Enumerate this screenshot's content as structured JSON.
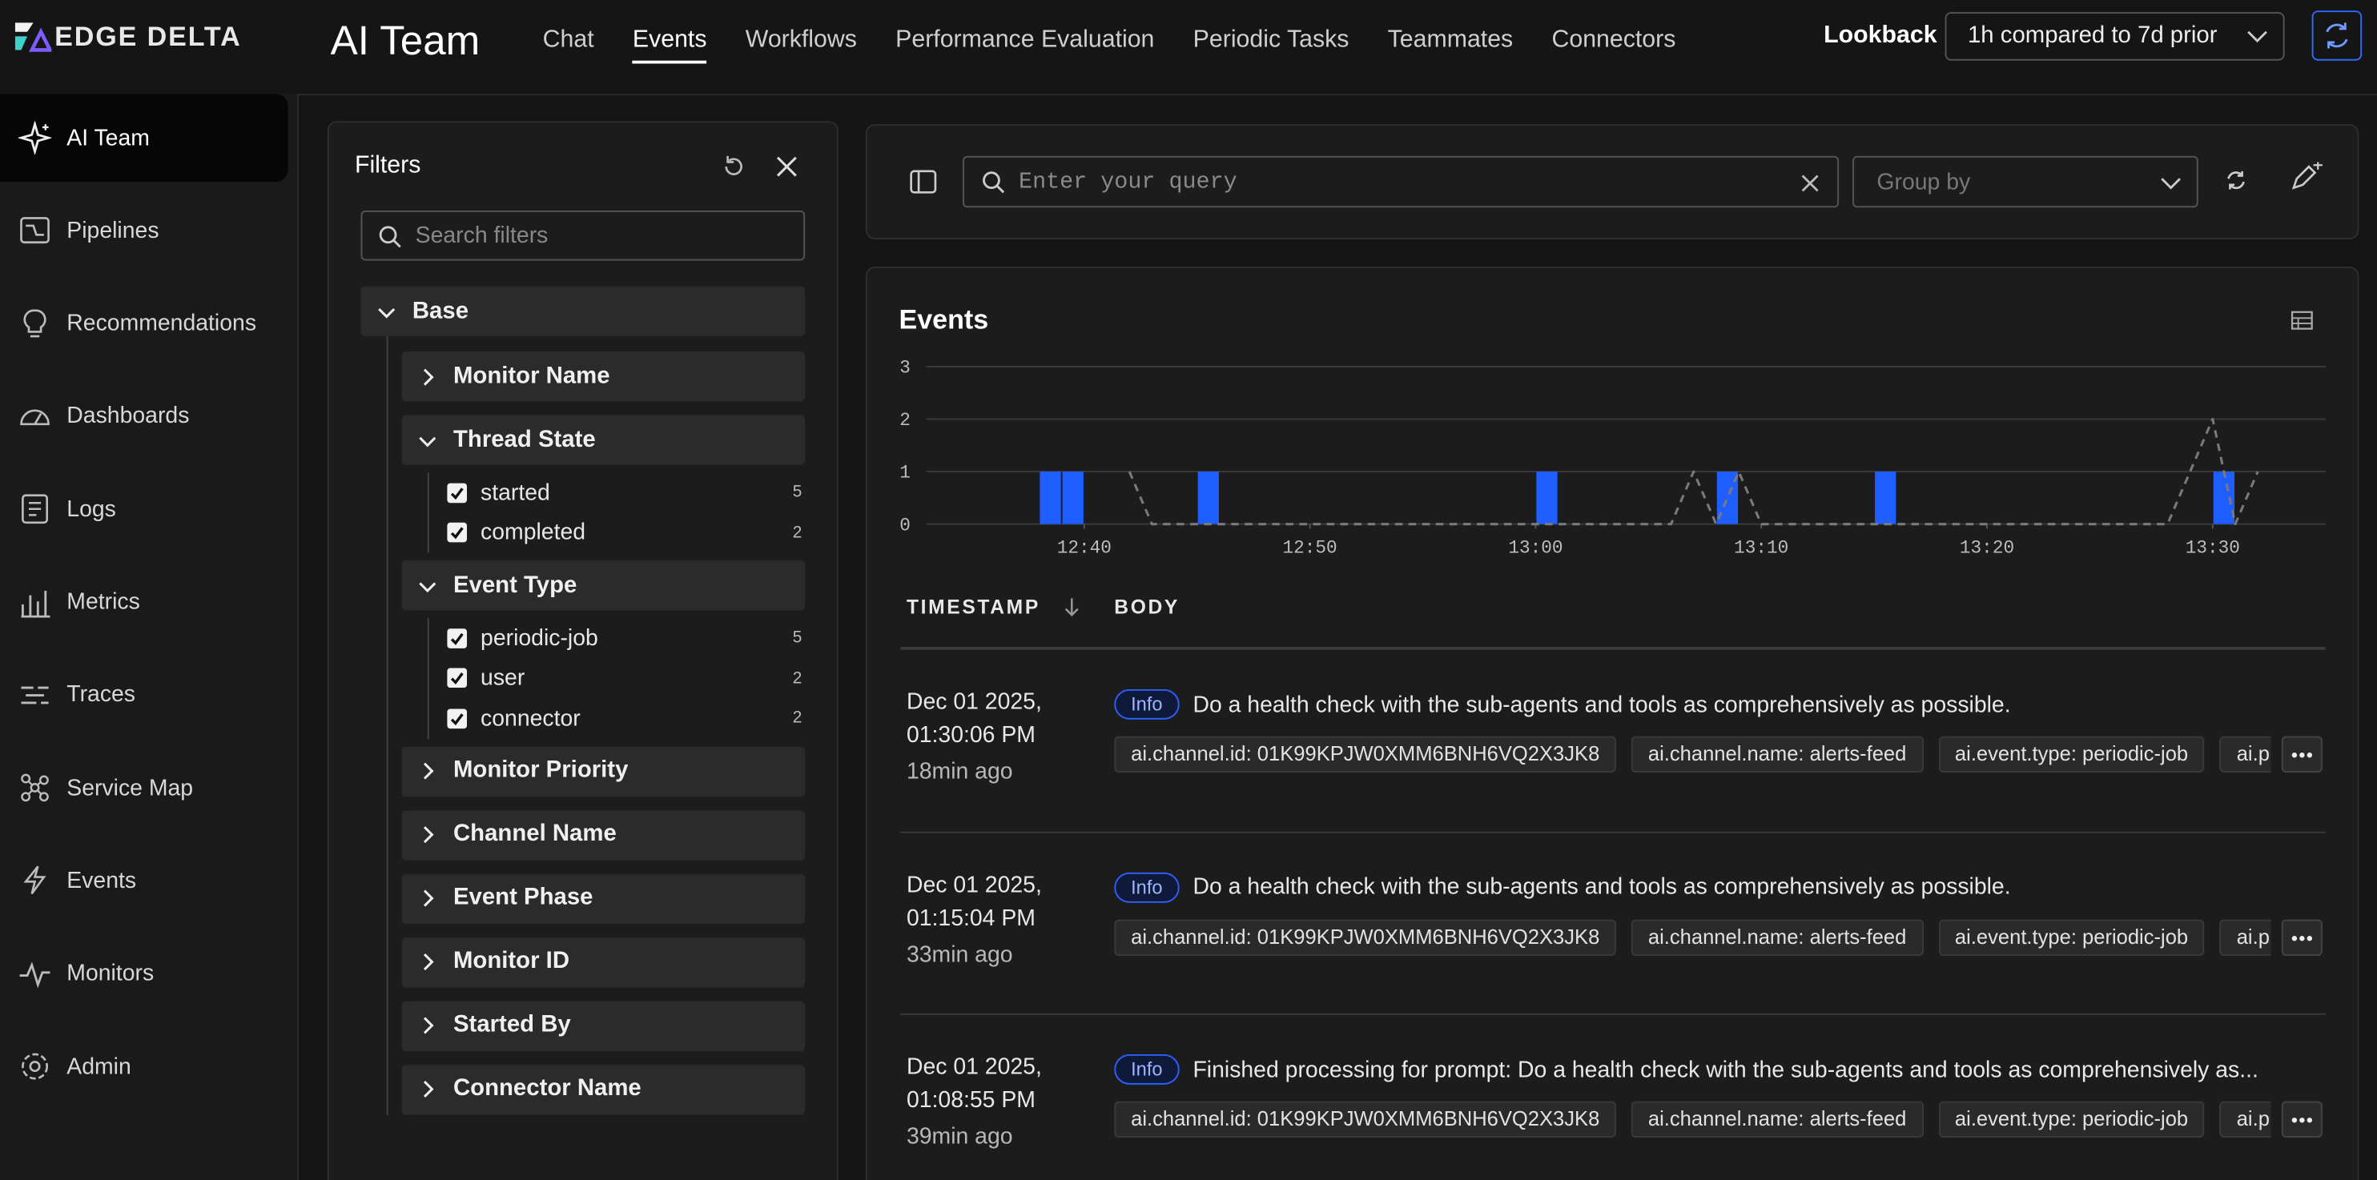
{
  "brand": "EDGE DELTA",
  "header": {
    "title": "AI Team",
    "tabs": [
      {
        "label": "Chat",
        "active": false
      },
      {
        "label": "Events",
        "active": true
      },
      {
        "label": "Workflows",
        "active": false
      },
      {
        "label": "Performance Evaluation",
        "active": false
      },
      {
        "label": "Periodic Tasks",
        "active": false
      },
      {
        "label": "Teammates",
        "active": false
      },
      {
        "label": "Connectors",
        "active": false
      }
    ],
    "lookback_label": "Lookback",
    "lookback_value": "1h compared to 7d prior"
  },
  "sidebar": {
    "items": [
      {
        "label": "AI Team",
        "active": true
      },
      {
        "label": "Pipelines",
        "active": false
      },
      {
        "label": "Recommendations",
        "active": false
      },
      {
        "label": "Dashboards",
        "active": false
      },
      {
        "label": "Logs",
        "active": false
      },
      {
        "label": "Metrics",
        "active": false
      },
      {
        "label": "Traces",
        "active": false
      },
      {
        "label": "Service Map",
        "active": false
      },
      {
        "label": "Events",
        "active": false
      },
      {
        "label": "Monitors",
        "active": false
      },
      {
        "label": "Admin",
        "active": false
      }
    ]
  },
  "filters": {
    "title": "Filters",
    "search_placeholder": "Search filters",
    "groups": [
      {
        "label": "Base",
        "expanded": true,
        "children": [
          {
            "label": "Monitor Name",
            "expanded": false
          },
          {
            "label": "Thread State",
            "expanded": true,
            "options": [
              {
                "label": "started",
                "count": 5,
                "checked": true
              },
              {
                "label": "completed",
                "count": 2,
                "checked": true
              }
            ]
          },
          {
            "label": "Event Type",
            "expanded": true,
            "options": [
              {
                "label": "periodic-job",
                "count": 5,
                "checked": true
              },
              {
                "label": "user",
                "count": 2,
                "checked": true
              },
              {
                "label": "connector",
                "count": 2,
                "checked": true
              }
            ]
          },
          {
            "label": "Monitor Priority",
            "expanded": false
          },
          {
            "label": "Channel Name",
            "expanded": false
          },
          {
            "label": "Event Phase",
            "expanded": false
          },
          {
            "label": "Monitor ID",
            "expanded": false
          },
          {
            "label": "Started By",
            "expanded": false
          },
          {
            "label": "Connector Name",
            "expanded": false
          }
        ]
      }
    ]
  },
  "query": {
    "placeholder": "Enter your query",
    "group_by": "Group by"
  },
  "chart_data": {
    "type": "bar",
    "title": "Events",
    "xlim": [
      "12:33",
      "13:35"
    ],
    "xticks": [
      "12:40",
      "12:50",
      "13:00",
      "13:10",
      "13:20",
      "13:30"
    ],
    "ylim": [
      0,
      3
    ],
    "yticks": [
      0,
      1,
      2,
      3
    ],
    "grid": true,
    "series": [
      {
        "type": "bar",
        "color": "#1f5eff",
        "x": [
          "12:38",
          "12:39",
          "12:45",
          "13:00",
          "13:08",
          "13:15",
          "13:30"
        ],
        "values": [
          1,
          1,
          1,
          1,
          1,
          1,
          1
        ]
      },
      {
        "type": "line",
        "color": "#7a7a7a",
        "dashed": true,
        "x": [
          "12:42",
          "12:43",
          "13:06",
          "13:07",
          "13:08",
          "13:09",
          "13:10",
          "13:28",
          "13:29",
          "13:30",
          "13:31",
          "13:32"
        ],
        "values": [
          1,
          0,
          0,
          1,
          0,
          1,
          0,
          0,
          1,
          2,
          0,
          1
        ]
      }
    ]
  },
  "table": {
    "columns": [
      "TIMESTAMP",
      "BODY"
    ],
    "rows": [
      {
        "date": "Dec 01 2025,",
        "time": "01:30:06 PM",
        "ago": "18min ago",
        "level": "Info",
        "body": "Do a health check with the sub-agents and tools as comprehensively as possible.",
        "tags": [
          "ai.channel.id: 01K99KPJW0XMM6BNH6VQ2X3JK8",
          "ai.channel.name: alerts-feed",
          "ai.event.type: periodic-job",
          "ai.p"
        ]
      },
      {
        "date": "Dec 01 2025,",
        "time": "01:15:04 PM",
        "ago": "33min ago",
        "level": "Info",
        "body": "Do a health check with the sub-agents and tools as comprehensively as possible.",
        "tags": [
          "ai.channel.id: 01K99KPJW0XMM6BNH6VQ2X3JK8",
          "ai.channel.name: alerts-feed",
          "ai.event.type: periodic-job",
          "ai.p"
        ]
      },
      {
        "date": "Dec 01 2025,",
        "time": "01:08:55 PM",
        "ago": "39min ago",
        "level": "Info",
        "body": "Finished processing for prompt: Do a health check with the sub-agents and tools as comprehensively as...",
        "tags": [
          "ai.channel.id: 01K99KPJW0XMM6BNH6VQ2X3JK8",
          "ai.channel.name: alerts-feed",
          "ai.event.type: periodic-job",
          "ai.p"
        ]
      }
    ]
  }
}
